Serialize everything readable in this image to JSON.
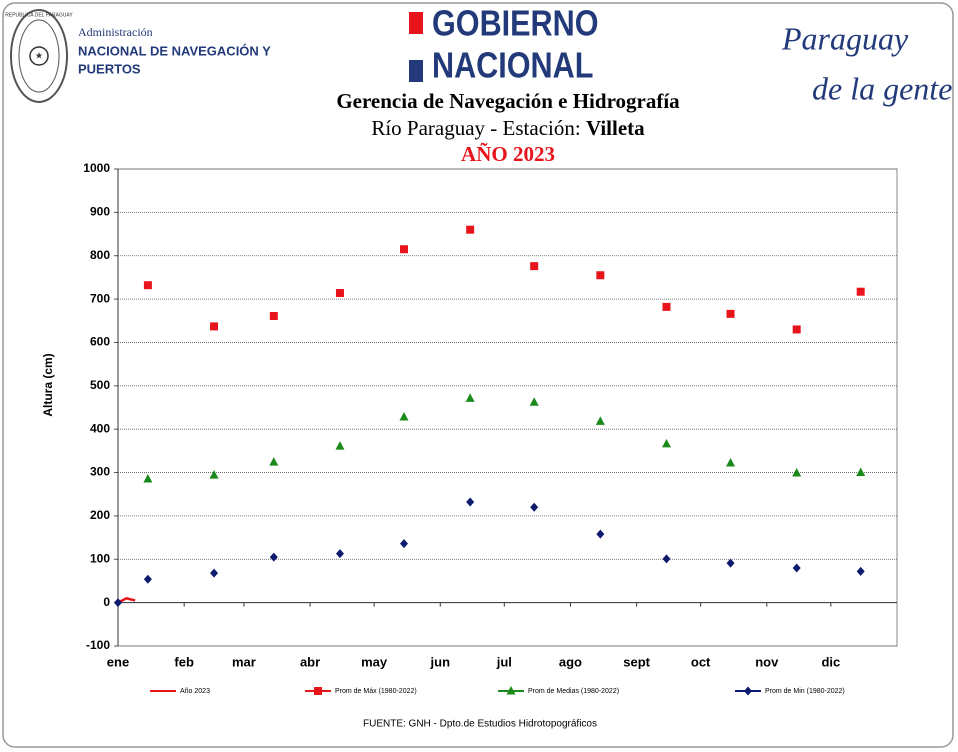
{
  "header": {
    "seal": "REPUBLICA DEL PARAGUAY",
    "agency_line1": "Administración",
    "agency_line2": "NACIONAL DE NAVEGACIÓN Y",
    "agency_line3": "PUERTOS",
    "gov_line1": "GOBIERNO",
    "gov_line2": "NACIONAL",
    "slogan_line1": "Paraguay",
    "slogan_line2": "de la gente"
  },
  "chart_data": {
    "type": "scatter",
    "title": "Gerencia de Navegación e Hidrografía",
    "subtitle": "Río Paraguay - Estación:",
    "station": "Villeta",
    "year_title": "AÑO 2023",
    "y_label": "Altura (cm)",
    "xlim": [
      1,
      366
    ],
    "xticks": [
      {
        "value": 1,
        "label": "ene"
      },
      {
        "value": 32,
        "label": "feb"
      },
      {
        "value": 60,
        "label": "mar"
      },
      {
        "value": 91,
        "label": "abr"
      },
      {
        "value": 121,
        "label": "may"
      },
      {
        "value": 152,
        "label": "jun"
      },
      {
        "value": 182,
        "label": "jul"
      },
      {
        "value": 213,
        "label": "ago"
      },
      {
        "value": 244,
        "label": "sept"
      },
      {
        "value": 274,
        "label": "oct"
      },
      {
        "value": 305,
        "label": "nov"
      },
      {
        "value": 335,
        "label": "dic"
      }
    ],
    "ylim": [
      -100,
      1000
    ],
    "yticks": [
      -100,
      0,
      100,
      200,
      300,
      400,
      500,
      600,
      700,
      800,
      900,
      1000
    ],
    "grid": true,
    "series": [
      {
        "name": "Año 2023",
        "color": "#e8141b",
        "marker": "none",
        "line": true,
        "x": [
          1,
          5,
          9
        ],
        "values": [
          0,
          10,
          5
        ]
      },
      {
        "name": "Prom de Máx  (1980-2022)",
        "color": "#e8141b",
        "marker": "square",
        "line": false,
        "x": [
          15,
          46,
          74,
          105,
          135,
          166,
          196,
          227,
          258,
          288,
          319,
          349
        ],
        "values": [
          732,
          637,
          661,
          714,
          815,
          860,
          776,
          755,
          682,
          666,
          630,
          717
        ]
      },
      {
        "name": "Prom de Medias  (1980-2022)",
        "color": "#1a8a1a",
        "marker": "triangle",
        "line": false,
        "x": [
          15,
          46,
          74,
          105,
          135,
          166,
          196,
          227,
          258,
          288,
          319,
          349
        ],
        "values": [
          285,
          294,
          324,
          361,
          428,
          471,
          462,
          418,
          366,
          322,
          299,
          300
        ]
      },
      {
        "name": "Prom de Min  (1980-2022)",
        "color": "#0d1a6e",
        "marker": "diamond",
        "line": false,
        "x": [
          1,
          15,
          46,
          74,
          105,
          135,
          166,
          196,
          227,
          258,
          288,
          319,
          349
        ],
        "values": [
          0,
          54,
          68,
          105,
          113,
          136,
          232,
          220,
          158,
          101,
          91,
          80,
          72
        ]
      }
    ]
  },
  "footer": "FUENTE:  GNH  - Dpto.de Estudios Hidrotopográficos"
}
